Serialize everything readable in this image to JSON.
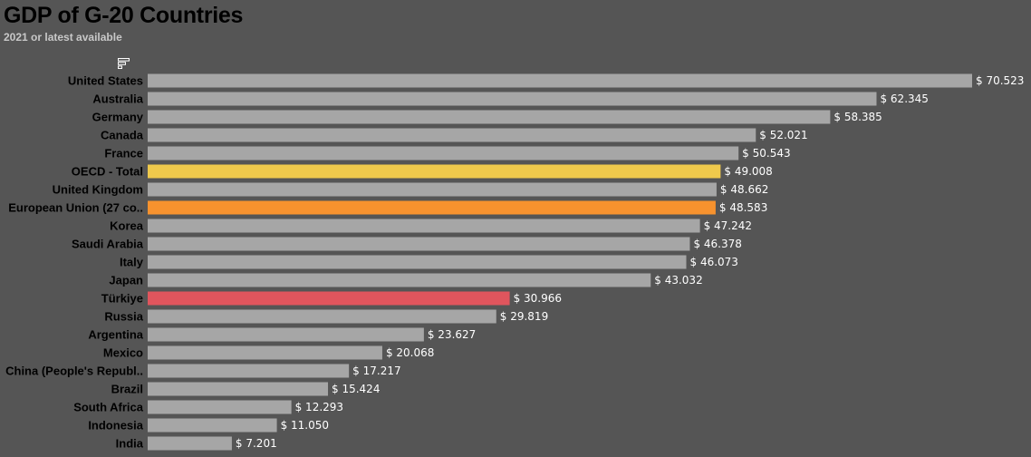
{
  "chart_data": {
    "type": "bar",
    "orientation": "horizontal",
    "title": "GDP of G-20 Countries",
    "subtitle": "2021 or latest available",
    "value_prefix": "$ ",
    "categories": [
      "United States",
      "Australia",
      "Germany",
      "Canada",
      "France",
      "OECD - Total",
      "United Kingdom",
      "European Union (27 co..",
      "Korea",
      "Saudi Arabia",
      "Italy",
      "Japan",
      "Türkiye",
      "Russia",
      "Argentina",
      "Mexico",
      "China (People's Republ..",
      "Brazil",
      "South Africa",
      "Indonesia",
      "India"
    ],
    "values": [
      70.523,
      62.345,
      58.385,
      52.021,
      50.543,
      49.008,
      48.662,
      48.583,
      47.242,
      46.378,
      46.073,
      43.032,
      30.966,
      29.819,
      23.627,
      20.068,
      17.217,
      15.424,
      12.293,
      11.05,
      7.201
    ],
    "value_labels": [
      "$ 70.523",
      "$ 62.345",
      "$ 58.385",
      "$ 52.021",
      "$ 50.543",
      "$ 49.008",
      "$ 48.662",
      "$ 48.583",
      "$ 47.242",
      "$ 46.378",
      "$ 46.073",
      "$ 43.032",
      "$ 30.966",
      "$ 29.819",
      "$ 23.627",
      "$ 20.068",
      "$ 17.217",
      "$ 15.424",
      "$ 12.293",
      "$ 11.050",
      "$ 7.201"
    ],
    "bar_colors": [
      "#a6a6a6",
      "#a6a6a6",
      "#a6a6a6",
      "#a6a6a6",
      "#a6a6a6",
      "#efc94c",
      "#a6a6a6",
      "#f7922e",
      "#a6a6a6",
      "#a6a6a6",
      "#a6a6a6",
      "#a6a6a6",
      "#e0555d",
      "#a6a6a6",
      "#a6a6a6",
      "#a6a6a6",
      "#a6a6a6",
      "#a6a6a6",
      "#a6a6a6",
      "#a6a6a6",
      "#a6a6a6"
    ],
    "xlim": [
      0,
      70.523
    ],
    "grid": false,
    "legend": "none"
  },
  "icons": {
    "sort": "sort-descending-icon"
  },
  "colors": {
    "background": "#555555",
    "default_bar": "#a6a6a6",
    "oecd_highlight": "#efc94c",
    "eu_highlight": "#f7922e",
    "turkiye_highlight": "#e0555d"
  }
}
